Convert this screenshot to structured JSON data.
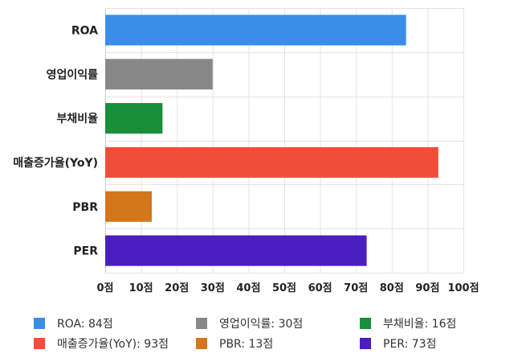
{
  "chart_data": {
    "type": "bar",
    "orientation": "horizontal",
    "categories": [
      "ROA",
      "영업이익률",
      "부채비율",
      "매출증가율(YoY)",
      "PBR",
      "PER"
    ],
    "values": [
      84,
      30,
      16,
      93,
      13,
      73
    ],
    "colors": [
      "#3a8ee6",
      "#888888",
      "#1a8f3a",
      "#f04e3a",
      "#d4761c",
      "#4a1ec0"
    ],
    "xlim": [
      0,
      100
    ],
    "xticks": [
      "0점",
      "10점",
      "20점",
      "30점",
      "40점",
      "50점",
      "60점",
      "70점",
      "80점",
      "90점",
      "100점"
    ],
    "grid": true,
    "legend_position": "bottom",
    "legend": [
      "ROA: 84점",
      "영업이익률: 30점",
      "부채비율: 16점",
      "매출증가율(YoY): 93점",
      "PBR: 13점",
      "PER: 73점"
    ]
  }
}
